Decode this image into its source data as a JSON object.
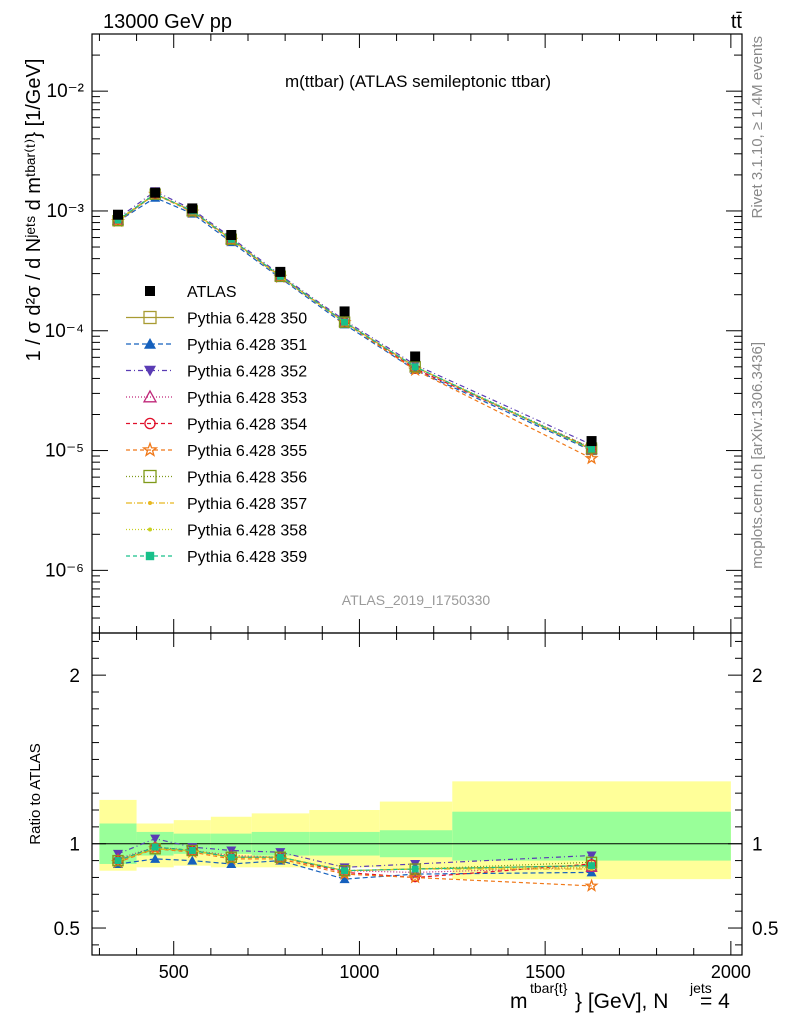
{
  "header": {
    "energy_label": "13000 GeV pp",
    "process_label": "tt̄",
    "side_rivet": "Rivet 3.1.10, ≥ 1.4M events",
    "side_mcplots": "mcplots.cern.ch [arXiv:1306.3436]"
  },
  "chart_data": {
    "type": "line",
    "title": "m(ttbar) (ATLAS semileptonic ttbar)",
    "analysis_label": "ATLAS_2019_I1750330",
    "x_label_main": "m",
    "x_label_sup": "tbar{t}",
    "x_label_rest": "} [GeV], N",
    "x_label_sup2": "jets",
    "x_label_end": " = 4",
    "y_label": "1 / σ d²σ / d Nʲᵉᵗˢ d mᵗᵇᵃʳ⁽ᵗ⁾} [1/GeV]",
    "ratio_ylabel": "Ratio to ATLAS",
    "xlim": [
      280,
      2030
    ],
    "ylim": [
      3e-07,
      0.03
    ],
    "yscale": "log",
    "ratio_ylim": [
      0.34,
      2.25
    ],
    "x_ticks": [
      500,
      1000,
      1500,
      2000
    ],
    "y_ticks": [
      {
        "value": 1e-06,
        "label": "10⁻⁶"
      },
      {
        "value": 1e-05,
        "label": "10⁻⁵"
      },
      {
        "value": 0.0001,
        "label": "10⁻⁴"
      },
      {
        "value": 0.001,
        "label": "10⁻³"
      },
      {
        "value": 0.01,
        "label": "10⁻²"
      }
    ],
    "ratio_ticks": [
      {
        "value": 0.5,
        "label": "0.5"
      },
      {
        "value": 1,
        "label": "1"
      },
      {
        "value": 2,
        "label": "2"
      }
    ],
    "x": [
      350,
      450,
      550,
      655,
      787,
      960,
      1150,
      1625
    ],
    "bin_edges": [
      300,
      400,
      500,
      600,
      710,
      865,
      1055,
      1250,
      2000
    ],
    "data": {
      "name": "ATLAS",
      "values": [
        0.00093,
        0.00142,
        0.00105,
        0.00063,
        0.00031,
        0.000145,
        6.1e-05,
        1.2e-05
      ],
      "band_stat": [
        [
          0.88,
          1.12
        ],
        [
          0.93,
          1.07
        ],
        [
          0.94,
          1.06
        ],
        [
          0.94,
          1.06
        ],
        [
          0.93,
          1.07
        ],
        [
          0.93,
          1.07
        ],
        [
          0.92,
          1.08
        ],
        [
          0.9,
          1.19
        ]
      ],
      "band_total": [
        [
          0.84,
          1.26
        ],
        [
          0.86,
          1.12
        ],
        [
          0.87,
          1.14
        ],
        [
          0.86,
          1.16
        ],
        [
          0.86,
          1.18
        ],
        [
          0.86,
          1.2
        ],
        [
          0.85,
          1.25
        ],
        [
          0.79,
          1.37
        ]
      ]
    },
    "series": [
      {
        "name": "Pythia 6.428 350",
        "color": "#a89b32",
        "dash": "",
        "marker": "square-open",
        "values": [
          0.00083,
          0.00138,
          0.001,
          0.00058,
          0.000285,
          0.000118,
          5e-05,
          1.02e-05
        ],
        "ratio": [
          0.9,
          0.97,
          0.96,
          0.92,
          0.92,
          0.84,
          0.85,
          0.87
        ]
      },
      {
        "name": "Pythia 6.428 351",
        "color": "#1560bd",
        "dash": "5,3",
        "marker": "triangle-up-filled",
        "values": [
          0.00082,
          0.00129,
          0.00095,
          0.00055,
          0.000275,
          0.000113,
          4.7e-05,
          1e-05
        ],
        "ratio": [
          0.88,
          0.91,
          0.9,
          0.88,
          0.9,
          0.79,
          0.82,
          0.83
        ]
      },
      {
        "name": "Pythia 6.428 352",
        "color": "#5a3cb4",
        "dash": "5,3,1,3",
        "marker": "triangle-down-filled",
        "values": [
          0.00087,
          0.00146,
          0.00103,
          0.0006,
          0.000292,
          0.000122,
          5.2e-05,
          1.12e-05
        ],
        "ratio": [
          0.94,
          1.03,
          0.98,
          0.96,
          0.95,
          0.86,
          0.88,
          0.93
        ]
      },
      {
        "name": "Pythia 6.428 353",
        "color": "#c0287a",
        "dash": "1,2",
        "marker": "triangle-up-open",
        "values": [
          0.00084,
          0.0014,
          0.001,
          0.00058,
          0.000284,
          0.000119,
          4.9e-05,
          1.02e-05
        ],
        "ratio": [
          0.91,
          0.98,
          0.96,
          0.93,
          0.92,
          0.84,
          0.83,
          0.86
        ]
      },
      {
        "name": "Pythia 6.428 354",
        "color": "#e0102b",
        "dash": "4,3",
        "marker": "circle-open",
        "values": [
          0.00083,
          0.00139,
          0.001,
          0.00058,
          0.000284,
          0.000118,
          4.8e-05,
          1.05e-05
        ],
        "ratio": [
          0.9,
          0.98,
          0.96,
          0.92,
          0.92,
          0.83,
          0.8,
          0.88
        ]
      },
      {
        "name": "Pythia 6.428 355",
        "color": "#f07818",
        "dash": "4,3",
        "marker": "star-open",
        "values": [
          0.00082,
          0.00138,
          0.00098,
          0.00057,
          0.00028,
          0.000117,
          4.7e-05,
          8.6e-06
        ],
        "ratio": [
          0.89,
          0.97,
          0.95,
          0.91,
          0.91,
          0.82,
          0.8,
          0.75
        ]
      },
      {
        "name": "Pythia 6.428 356",
        "color": "#7f9a1a",
        "dash": "1,2",
        "marker": "square-open",
        "values": [
          0.00083,
          0.00138,
          0.001,
          0.00058,
          0.000285,
          0.000118,
          5e-05,
          1.05e-05
        ],
        "ratio": [
          0.9,
          0.97,
          0.96,
          0.92,
          0.92,
          0.84,
          0.85,
          0.89
        ]
      },
      {
        "name": "Pythia 6.428 357",
        "color": "#e8b820",
        "dash": "6,2,1,2",
        "marker": "dot",
        "values": [
          0.00084,
          0.00139,
          0.001,
          0.00058,
          0.000284,
          0.000118,
          5e-05,
          1.02e-05
        ],
        "ratio": [
          0.9,
          0.97,
          0.96,
          0.92,
          0.92,
          0.84,
          0.85,
          0.85
        ]
      },
      {
        "name": "Pythia 6.428 358",
        "color": "#c8d020",
        "dash": "1,2",
        "marker": "dot",
        "values": [
          0.00084,
          0.00139,
          0.001,
          0.00058,
          0.000284,
          0.000118,
          5e-05,
          1.02e-05
        ],
        "ratio": [
          0.9,
          0.97,
          0.96,
          0.92,
          0.92,
          0.84,
          0.85,
          0.86
        ]
      },
      {
        "name": "Pythia 6.428 359",
        "color": "#18c08a",
        "dash": "4,3",
        "marker": "square-filled",
        "values": [
          0.00084,
          0.00139,
          0.001,
          0.00058,
          0.000285,
          0.000118,
          5e-05,
          1.03e-05
        ],
        "ratio": [
          0.9,
          0.98,
          0.96,
          0.92,
          0.92,
          0.84,
          0.85,
          0.87
        ]
      }
    ]
  }
}
